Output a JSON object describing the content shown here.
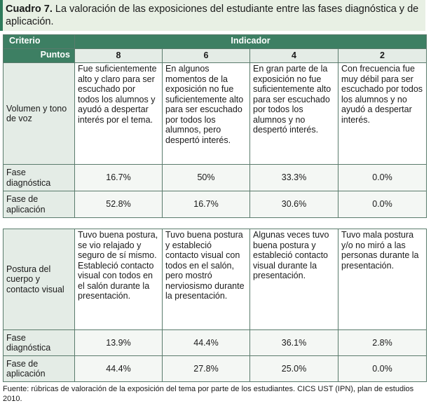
{
  "caption": {
    "label": "Cuadro 7.",
    "text": " La valoración de las exposiciones del estudiante entre las fases diagnóstica y de aplicación."
  },
  "header": {
    "criterio": "Criterio",
    "indicador": "Indicador",
    "puntos": "Puntos",
    "scores": [
      "8",
      "6",
      "4",
      "2"
    ]
  },
  "section1": {
    "criterion": "Volumen y tono de voz",
    "descriptions": [
      "Fue suficientemente alto y claro para ser escuchado por todos los alumnos y ayudó a despertar interés por el tema.",
      "En algunos momentos de la exposición no fue suficientemente alto para ser escuchado por todos los alumnos, pero despertó interés.",
      "En gran parte de la exposición no fue suficientemente alto para ser escuchado por todos los alumnos y no despertó interés.",
      "Con frecuencia fue muy débil para ser escuchado por todos los alumnos y no ayudó a despertar interés."
    ],
    "rows": [
      {
        "label": "Fase diagnóstica",
        "values": [
          "16.7%",
          "50%",
          "33.3%",
          "0.0%"
        ]
      },
      {
        "label": "Fase de aplicación",
        "values": [
          "52.8%",
          "16.7%",
          "30.6%",
          "0.0%"
        ]
      }
    ]
  },
  "section2": {
    "criterion": "Postura del cuerpo y contacto visual",
    "descriptions": [
      "Tuvo buena postura, se vio relajado y seguro de sí mismo. Estableció contacto visual con todos en el salón durante la presentación.",
      "Tuvo buena postura y estableció contacto visual con todos en el salón, pero mostró nerviosismo durante la presentación.",
      "Algunas veces tuvo buena postura y estableció contacto visual durante la presentación.",
      "Tuvo mala postura y/o no miró a las personas durante la presentación."
    ],
    "rows": [
      {
        "label": "Fase diagnóstica",
        "values": [
          "13.9%",
          "44.4%",
          "36.1%",
          "2.8%"
        ]
      },
      {
        "label": "Fase de aplicación",
        "values": [
          "44.4%",
          "27.8%",
          "25.0%",
          "0.0%"
        ]
      }
    ]
  },
  "footnote": "Fuente: rúbricas de valoración de la exposición del tema por parte de los estudiantes. CICS UST (IPN), plan de estudios 2010."
}
